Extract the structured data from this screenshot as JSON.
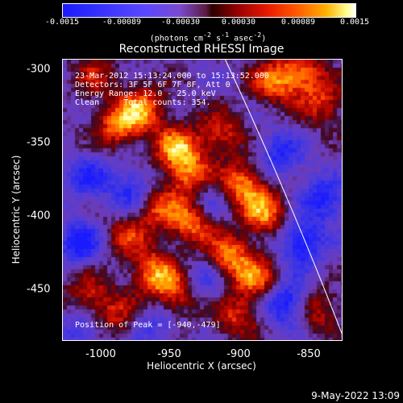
{
  "colorbar": {
    "ticks": [
      "-0.0015",
      "-0.00089",
      "-0.00030",
      "0.00030",
      "0.00089",
      "0.0015"
    ],
    "units_html": "(photons cm<sup>-2</sup> s<sup>-1</sup> asec<sup>-2</sup>)",
    "range": [
      -0.0015,
      0.0015
    ]
  },
  "chart_data": {
    "type": "heatmap",
    "title": "Reconstructed RHESSI Image",
    "xlabel": "Heliocentric X (arcsec)",
    "ylabel": "Heliocentric Y (arcsec)",
    "xlim": [
      -1022,
      -832
    ],
    "ylim": [
      -487,
      -295
    ],
    "xticks": [
      "-1000",
      "-950",
      "-900",
      "-850"
    ],
    "xtick_values": [
      -1000,
      -950,
      -900,
      -850
    ],
    "yticks": [
      "-300",
      "-350",
      "-400",
      "-450"
    ],
    "ytick_values": [
      -300,
      -350,
      -400,
      -450
    ],
    "annotations": [
      "23-Mar-2012 15:13:24.000 to 15:13:52.000",
      "Detectors: 3F 5F 6F 7F 8F, Att 0",
      "Energy Range: 12.0 - 25.0 keV",
      "Clean     Total counts: 354."
    ],
    "peak_label": "Position of Peak = [-940,-479]",
    "limb_curve": [
      [
        -912,
        -295
      ],
      [
        -832,
        -484
      ]
    ],
    "blobs": [
      {
        "x": -985,
        "y": -340,
        "v": 0.0012
      },
      {
        "x": -968,
        "y": -328,
        "v": 0.0013
      },
      {
        "x": -945,
        "y": -355,
        "v": 0.0014
      },
      {
        "x": -935,
        "y": -375,
        "v": 0.0013
      },
      {
        "x": -915,
        "y": -345,
        "v": 0.001
      },
      {
        "x": -900,
        "y": -380,
        "v": 0.0014
      },
      {
        "x": -885,
        "y": -400,
        "v": 0.0013
      },
      {
        "x": -935,
        "y": -405,
        "v": 0.0014
      },
      {
        "x": -960,
        "y": -395,
        "v": 0.0011
      },
      {
        "x": -980,
        "y": -415,
        "v": 0.0009
      },
      {
        "x": -960,
        "y": -440,
        "v": 0.0013
      },
      {
        "x": -945,
        "y": -455,
        "v": 0.0011
      },
      {
        "x": -910,
        "y": -430,
        "v": 0.0014
      },
      {
        "x": -890,
        "y": -445,
        "v": 0.0012
      },
      {
        "x": -905,
        "y": -470,
        "v": 0.0009
      },
      {
        "x": -880,
        "y": -310,
        "v": 0.0011
      },
      {
        "x": -860,
        "y": -305,
        "v": 0.0012
      },
      {
        "x": -845,
        "y": -325,
        "v": 0.0009
      },
      {
        "x": -1005,
        "y": -455,
        "v": 0.0009
      },
      {
        "x": -985,
        "y": -470,
        "v": 0.0008
      },
      {
        "x": -850,
        "y": -465,
        "v": 0.0009
      },
      {
        "x": -1000,
        "y": -305,
        "v": 0.0007
      },
      {
        "x": -975,
        "y": -385,
        "v": -0.0011
      },
      {
        "x": -1010,
        "y": -420,
        "v": -0.0012
      },
      {
        "x": -1005,
        "y": -375,
        "v": -0.0009
      },
      {
        "x": -925,
        "y": -390,
        "v": -0.0008
      },
      {
        "x": -875,
        "y": -360,
        "v": -0.001
      },
      {
        "x": -860,
        "y": -420,
        "v": -0.0013
      },
      {
        "x": -845,
        "y": -390,
        "v": -0.0011
      },
      {
        "x": -870,
        "y": -460,
        "v": -0.0014
      },
      {
        "x": -925,
        "y": -445,
        "v": -0.0008
      },
      {
        "x": -960,
        "y": -475,
        "v": -0.0007
      },
      {
        "x": -1010,
        "y": -480,
        "v": -0.0008
      }
    ]
  },
  "timestamp": "9-May-2022 13:09"
}
